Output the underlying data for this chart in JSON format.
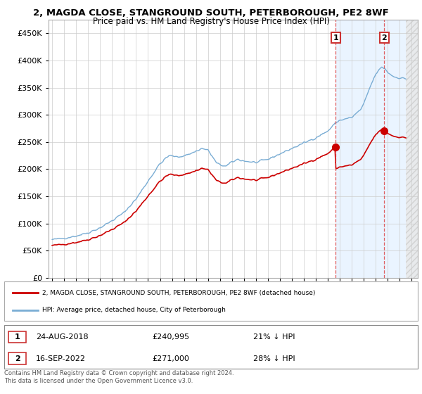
{
  "title": "2, MAGDA CLOSE, STANGROUND SOUTH, PETERBOROUGH, PE2 8WF",
  "subtitle": "Price paid vs. HM Land Registry's House Price Index (HPI)",
  "ylim": [
    0,
    475000
  ],
  "yticks": [
    0,
    50000,
    100000,
    150000,
    200000,
    250000,
    300000,
    350000,
    400000,
    450000
  ],
  "hpi_color": "#7aadd4",
  "price_color": "#cc0000",
  "transaction_1": {
    "date_label": "24-AUG-2018",
    "price": 240995,
    "hpi_pct": "21% ↓ HPI",
    "year": 2018.65
  },
  "transaction_2": {
    "date_label": "16-SEP-2022",
    "price": 271000,
    "hpi_pct": "28% ↓ HPI",
    "year": 2022.71
  },
  "legend_line1": "2, MAGDA CLOSE, STANGROUND SOUTH, PETERBOROUGH, PE2 8WF (detached house)",
  "legend_line2": "HPI: Average price, detached house, City of Peterborough",
  "footer": "Contains HM Land Registry data © Crown copyright and database right 2024.\nThis data is licensed under the Open Government Licence v3.0.",
  "xticks": [
    1995,
    1996,
    1997,
    1998,
    1999,
    2000,
    2001,
    2002,
    2003,
    2004,
    2005,
    2006,
    2007,
    2008,
    2009,
    2010,
    2011,
    2012,
    2013,
    2014,
    2015,
    2016,
    2017,
    2018,
    2019,
    2020,
    2021,
    2022,
    2023,
    2024,
    2025
  ],
  "xlim": [
    1994.7,
    2025.5
  ],
  "bg_color": "#ffffff",
  "grid_color": "#cccccc",
  "shaded_color": "#ddeeff",
  "hatch_color": "#cccccc"
}
